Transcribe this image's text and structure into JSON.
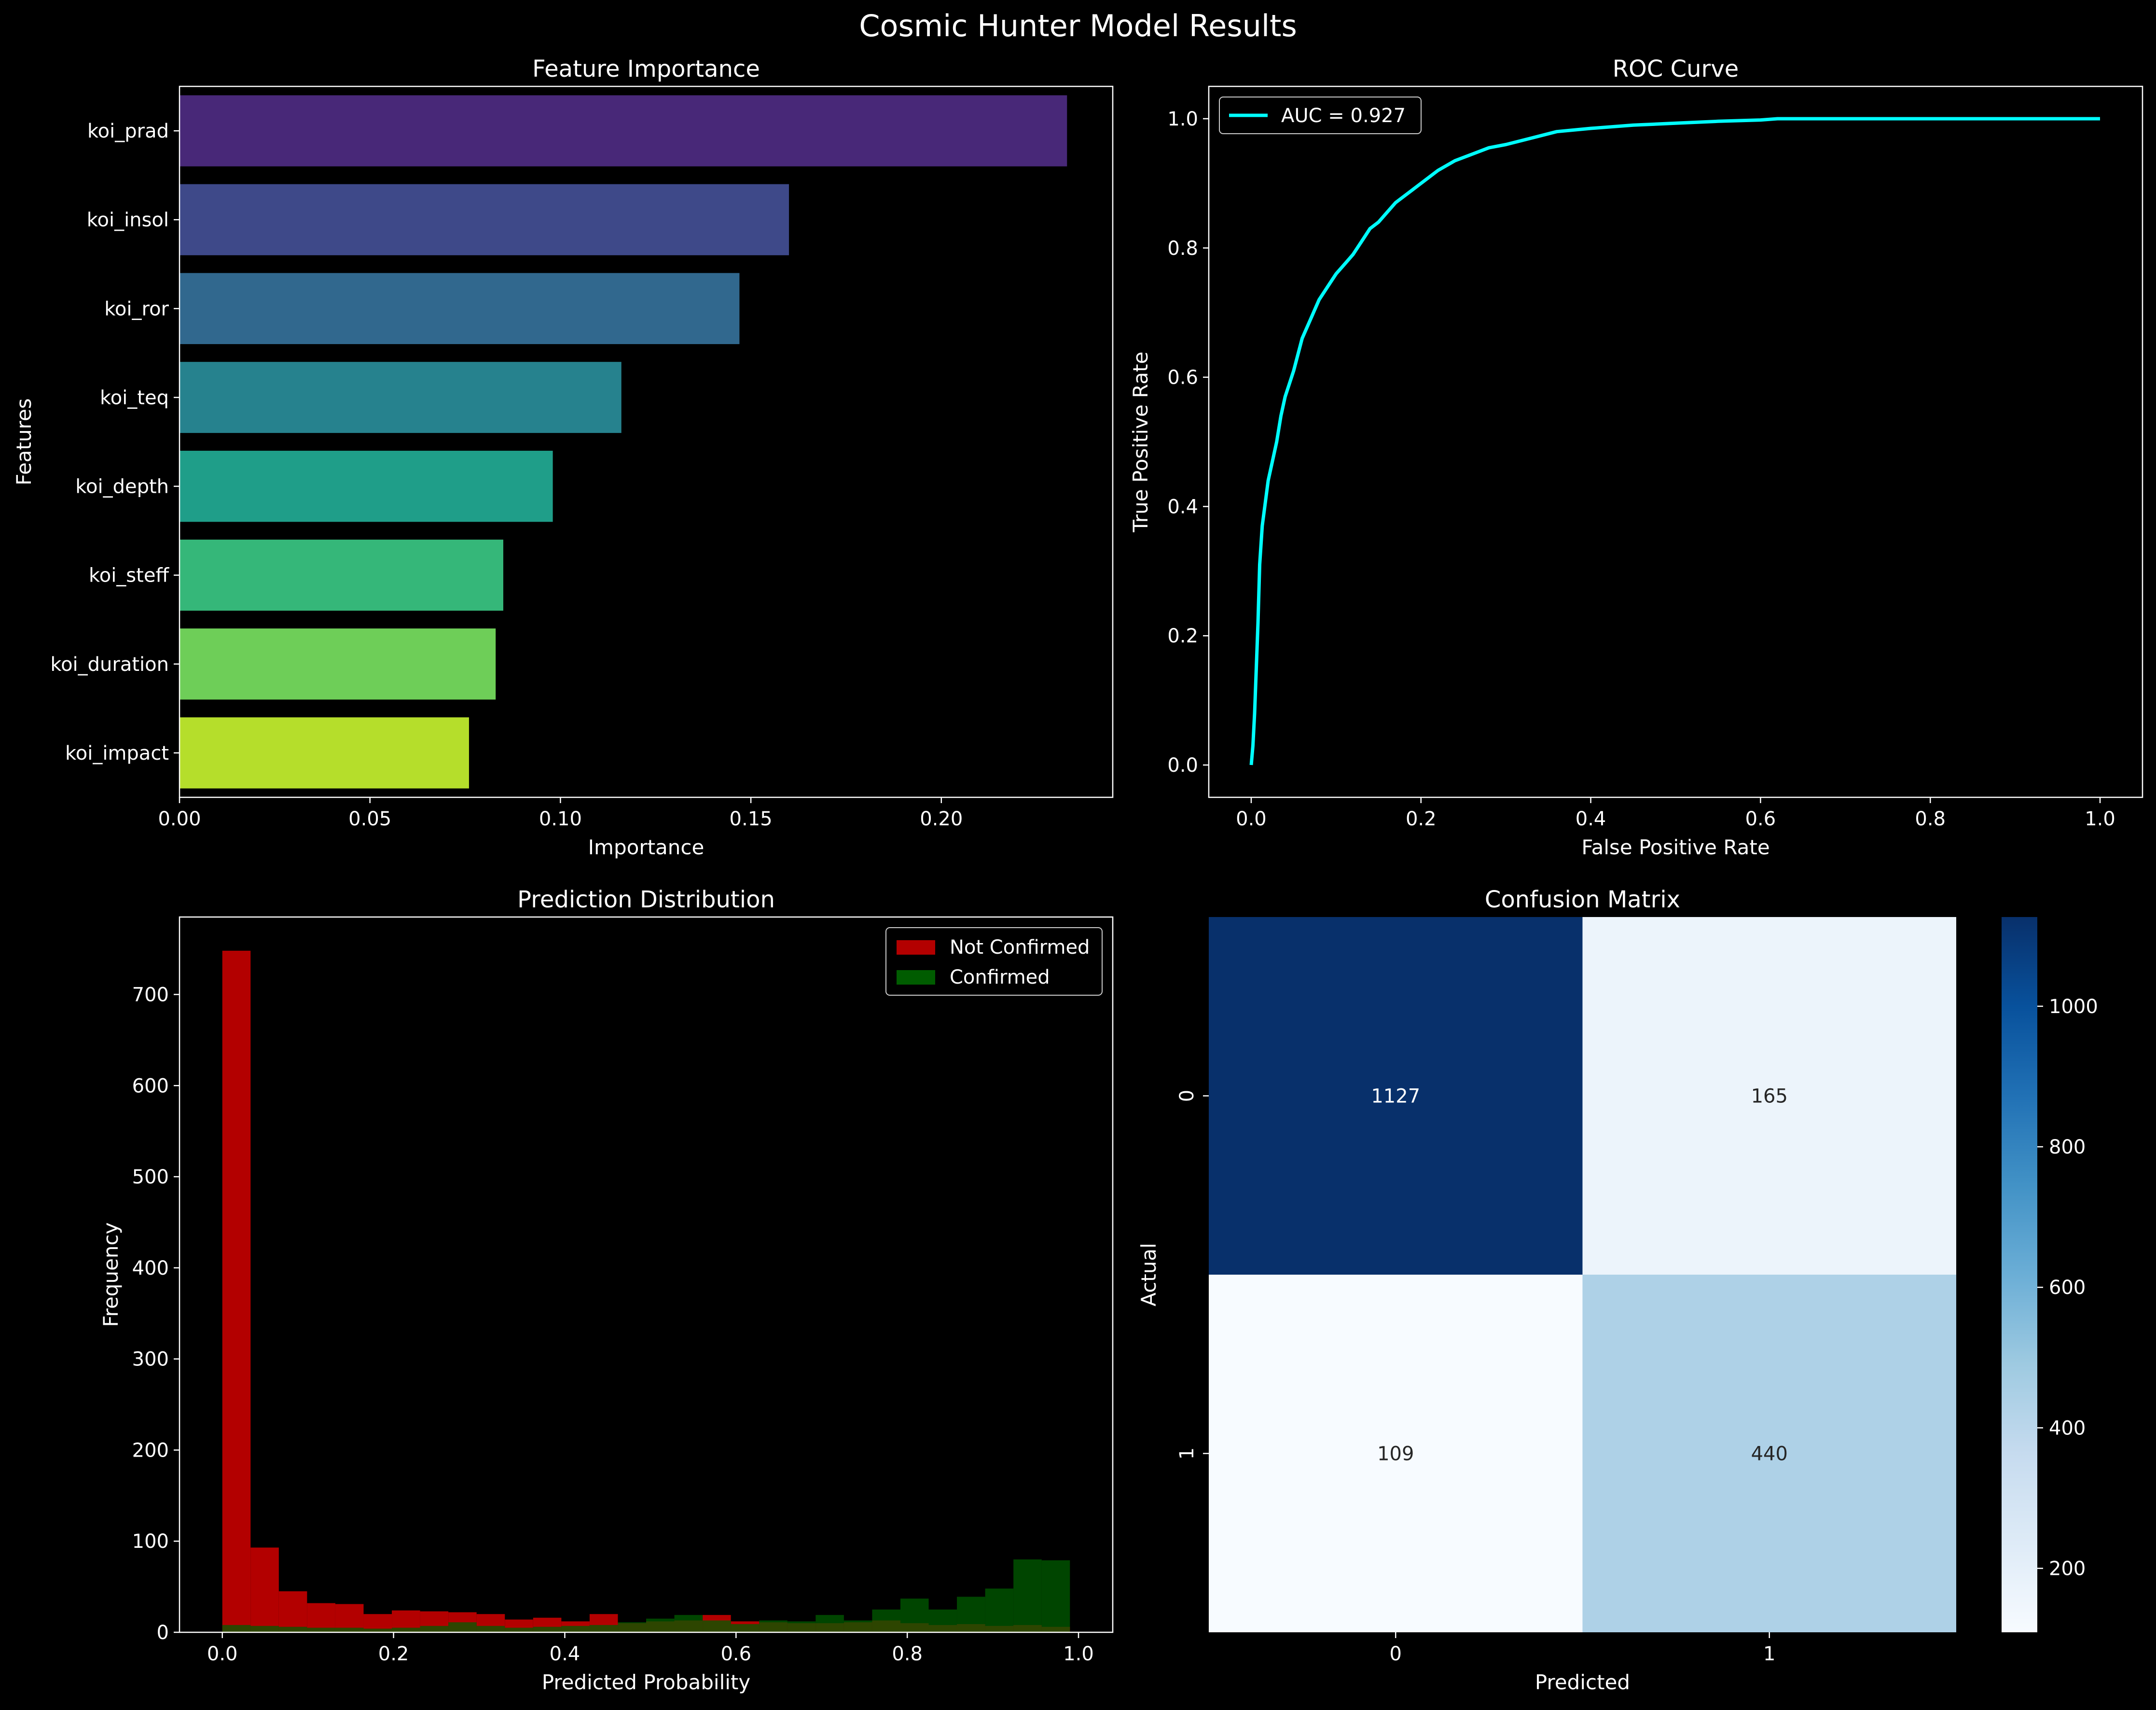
{
  "figure": {
    "title": "Cosmic Hunter Model Results",
    "background": "#000000",
    "foreground": "#ffffff"
  },
  "chart_data": [
    {
      "id": "feature_importance",
      "type": "bar",
      "orientation": "horizontal",
      "title": "Feature Importance",
      "xlabel": "Importance",
      "ylabel": "Features",
      "categories": [
        "koi_prad",
        "koi_insol",
        "koi_ror",
        "koi_teq",
        "koi_depth",
        "koi_steff",
        "koi_duration",
        "koi_impact"
      ],
      "values": [
        0.233,
        0.16,
        0.147,
        0.116,
        0.098,
        0.085,
        0.083,
        0.076
      ],
      "colors": [
        "#482878",
        "#3e4989",
        "#31688e",
        "#26828e",
        "#1f9e89",
        "#35b779",
        "#6ece58",
        "#b5de2b"
      ],
      "xlim": [
        0,
        0.245
      ],
      "xticks": [
        0,
        0.05,
        0.1,
        0.15,
        0.2
      ],
      "xtick_labels": [
        "0.00",
        "0.05",
        "0.10",
        "0.15",
        "0.20"
      ]
    },
    {
      "id": "roc_curve",
      "type": "line",
      "title": "ROC Curve",
      "xlabel": "False Positive Rate",
      "ylabel": "True Positive Rate",
      "xlim": [
        -0.05,
        1.05
      ],
      "ylim": [
        -0.05,
        1.05
      ],
      "xticks": [
        0,
        0.2,
        0.4,
        0.6,
        0.8,
        1.0
      ],
      "xtick_labels": [
        "0.0",
        "0.2",
        "0.4",
        "0.6",
        "0.8",
        "1.0"
      ],
      "yticks": [
        0,
        0.2,
        0.4,
        0.6,
        0.8,
        1.0
      ],
      "ytick_labels": [
        "0.0",
        "0.2",
        "0.4",
        "0.6",
        "0.8",
        "1.0"
      ],
      "legend_position": "upper left",
      "series": [
        {
          "name": "AUC = 0.927",
          "color": "#00ffff",
          "x": [
            0,
            0.002,
            0.004,
            0.006,
            0.008,
            0.01,
            0.013,
            0.016,
            0.02,
            0.025,
            0.03,
            0.035,
            0.04,
            0.045,
            0.05,
            0.06,
            0.07,
            0.08,
            0.09,
            0.1,
            0.11,
            0.12,
            0.13,
            0.14,
            0.15,
            0.16,
            0.17,
            0.18,
            0.19,
            0.2,
            0.22,
            0.24,
            0.26,
            0.28,
            0.3,
            0.33,
            0.36,
            0.4,
            0.45,
            0.5,
            0.55,
            0.6,
            0.62,
            0.7,
            0.8,
            0.9,
            1.0
          ],
          "y": [
            0,
            0.03,
            0.08,
            0.15,
            0.22,
            0.31,
            0.37,
            0.4,
            0.44,
            0.47,
            0.5,
            0.54,
            0.57,
            0.59,
            0.61,
            0.66,
            0.69,
            0.72,
            0.74,
            0.76,
            0.775,
            0.79,
            0.81,
            0.83,
            0.84,
            0.855,
            0.87,
            0.88,
            0.89,
            0.9,
            0.92,
            0.935,
            0.945,
            0.955,
            0.96,
            0.97,
            0.98,
            0.985,
            0.99,
            0.993,
            0.996,
            0.998,
            1.0,
            1.0,
            1.0,
            1.0,
            1.0
          ]
        }
      ]
    },
    {
      "id": "prediction_distribution",
      "type": "histogram",
      "title": "Prediction Distribution",
      "xlabel": "Predicted Probability",
      "ylabel": "Frequency",
      "xlim": [
        -0.05,
        1.04
      ],
      "ylim": [
        0,
        785
      ],
      "xticks": [
        0,
        0.2,
        0.4,
        0.6,
        0.8,
        1.0
      ],
      "xtick_labels": [
        "0.0",
        "0.2",
        "0.4",
        "0.6",
        "0.8",
        "1.0"
      ],
      "yticks": [
        0,
        100,
        200,
        300,
        400,
        500,
        600,
        700
      ],
      "ytick_labels": [
        "0",
        "100",
        "200",
        "300",
        "400",
        "500",
        "600",
        "700"
      ],
      "legend_position": "upper right",
      "bin_edges": [
        0.0,
        0.033,
        0.066,
        0.099,
        0.132,
        0.165,
        0.198,
        0.231,
        0.264,
        0.297,
        0.33,
        0.363,
        0.396,
        0.429,
        0.462,
        0.495,
        0.528,
        0.561,
        0.594,
        0.627,
        0.66,
        0.693,
        0.726,
        0.759,
        0.792,
        0.825,
        0.858,
        0.891,
        0.924,
        0.957,
        0.99
      ],
      "series": [
        {
          "name": "Not Confirmed",
          "color": "#b30000",
          "counts": [
            748,
            93,
            45,
            32,
            31,
            20,
            24,
            23,
            22,
            20,
            14,
            16,
            12,
            20,
            10,
            12,
            13,
            19,
            12,
            11,
            10,
            10,
            11,
            13,
            10,
            8,
            9,
            7,
            8,
            6
          ]
        },
        {
          "name": "Confirmed",
          "color": "#005c00",
          "counts": [
            8,
            7,
            6,
            5,
            5,
            4,
            5,
            7,
            11,
            7,
            5,
            6,
            7,
            8,
            11,
            15,
            19,
            13,
            9,
            13,
            12,
            19,
            13,
            25,
            37,
            25,
            39,
            48,
            80,
            79
          ]
        }
      ]
    },
    {
      "id": "confusion_matrix",
      "type": "heatmap",
      "title": "Confusion Matrix",
      "xlabel": "Predicted",
      "ylabel": "Actual",
      "x_labels": [
        "0",
        "1"
      ],
      "y_labels": [
        "0",
        "1"
      ],
      "values": [
        [
          1127,
          165
        ],
        [
          109,
          440
        ]
      ],
      "annotations": [
        [
          "1127",
          "165"
        ],
        [
          "109",
          "440"
        ]
      ],
      "colormap": "Blues",
      "colorbar_range": [
        109,
        1127
      ],
      "colorbar_ticks": [
        200,
        400,
        600,
        800,
        1000
      ],
      "colorbar_tick_labels": [
        "200",
        "400",
        "600",
        "800",
        "1000"
      ]
    }
  ]
}
